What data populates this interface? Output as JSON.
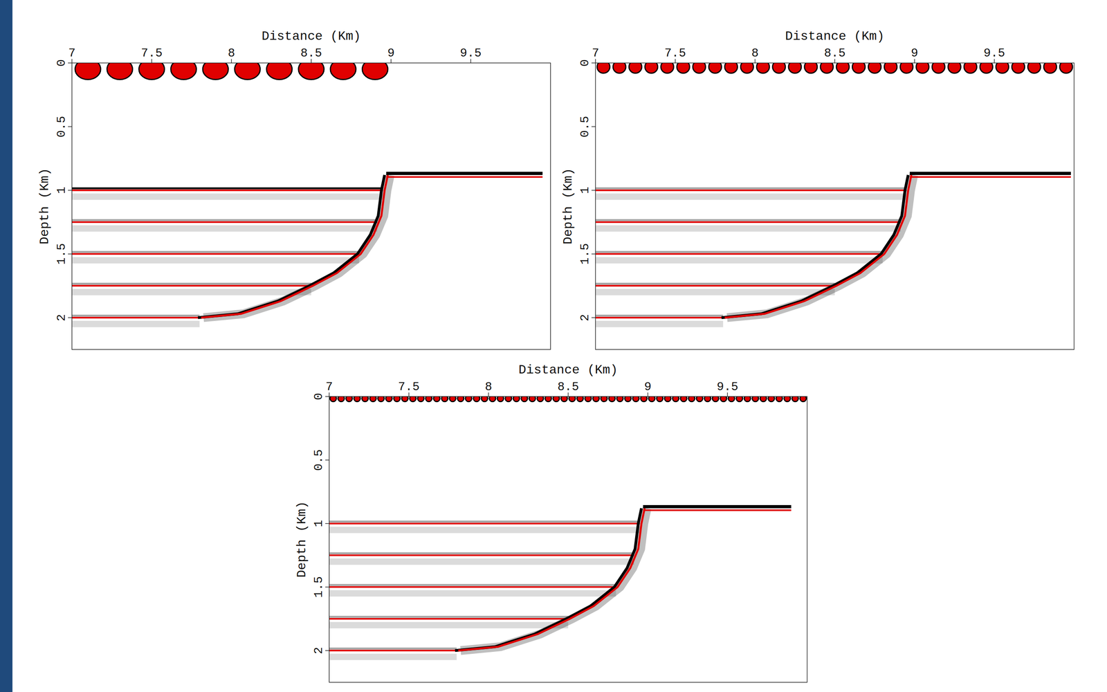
{
  "chart_data": [
    {
      "type": "image",
      "xlabel": "Distance (Km)",
      "ylabel": "Depth (Km)",
      "xlim": [
        7,
        10
      ],
      "ylim": [
        0,
        2.25
      ],
      "xticks": [
        7,
        7.5,
        8,
        8.5,
        9,
        9.5
      ],
      "yticks": [
        0,
        0.5,
        1,
        1.5,
        2
      ],
      "reflectors": [
        1,
        1.25,
        1.5,
        1.75,
        2
      ],
      "boundary": {
        "x": [
          8.97,
          8.95,
          8.93,
          8.88,
          8.8,
          8.65,
          8.5,
          8.3,
          8.05,
          7.8
        ],
        "y": [
          0.88,
          1.0,
          1.2,
          1.35,
          1.5,
          1.65,
          1.75,
          1.87,
          1.97,
          2.0
        ]
      },
      "shelf": {
        "depth": 0.88,
        "x": [
          8.97,
          9.95
        ]
      },
      "sources": {
        "start": 7.1,
        "end": 8.9,
        "spacing": 0.2
      }
    },
    {
      "type": "image",
      "xlabel": "Distance (Km)",
      "ylabel": "Depth (Km)",
      "xlim": [
        7,
        10
      ],
      "ylim": [
        0,
        2.25
      ],
      "xticks": [
        7,
        7.5,
        8,
        8.5,
        9,
        9.5
      ],
      "yticks": [
        0,
        0.5,
        1,
        1.5,
        2
      ],
      "reflectors": [
        1,
        1.25,
        1.5,
        1.75,
        2
      ],
      "boundary": {
        "x": [
          8.97,
          8.95,
          8.93,
          8.88,
          8.8,
          8.65,
          8.5,
          8.3,
          8.05,
          7.8
        ],
        "y": [
          0.88,
          1.0,
          1.2,
          1.35,
          1.5,
          1.65,
          1.75,
          1.87,
          1.97,
          2.0
        ]
      },
      "shelf": {
        "depth": 0.88,
        "x": [
          8.97,
          9.98
        ]
      },
      "sources": {
        "start": 7.05,
        "end": 9.95,
        "spacing": 0.1
      }
    },
    {
      "type": "image",
      "xlabel": "Distance (Km)",
      "ylabel": "Depth (Km)",
      "xlim": [
        7,
        10
      ],
      "ylim": [
        0,
        2.25
      ],
      "xticks": [
        7,
        7.5,
        8,
        8.5,
        9,
        9.5
      ],
      "yticks": [
        0,
        0.5,
        1,
        1.5,
        2
      ],
      "reflectors": [
        1,
        1.25,
        1.5,
        1.75,
        2
      ],
      "boundary": {
        "x": [
          8.97,
          8.95,
          8.93,
          8.88,
          8.8,
          8.65,
          8.5,
          8.3,
          8.05,
          7.8
        ],
        "y": [
          0.88,
          1.0,
          1.2,
          1.35,
          1.5,
          1.65,
          1.75,
          1.87,
          1.97,
          2.0
        ]
      },
      "shelf": {
        "depth": 0.88,
        "x": [
          8.97,
          9.9
        ]
      },
      "sources": {
        "start": 7.025,
        "end": 9.975,
        "spacing": 0.05
      }
    }
  ]
}
